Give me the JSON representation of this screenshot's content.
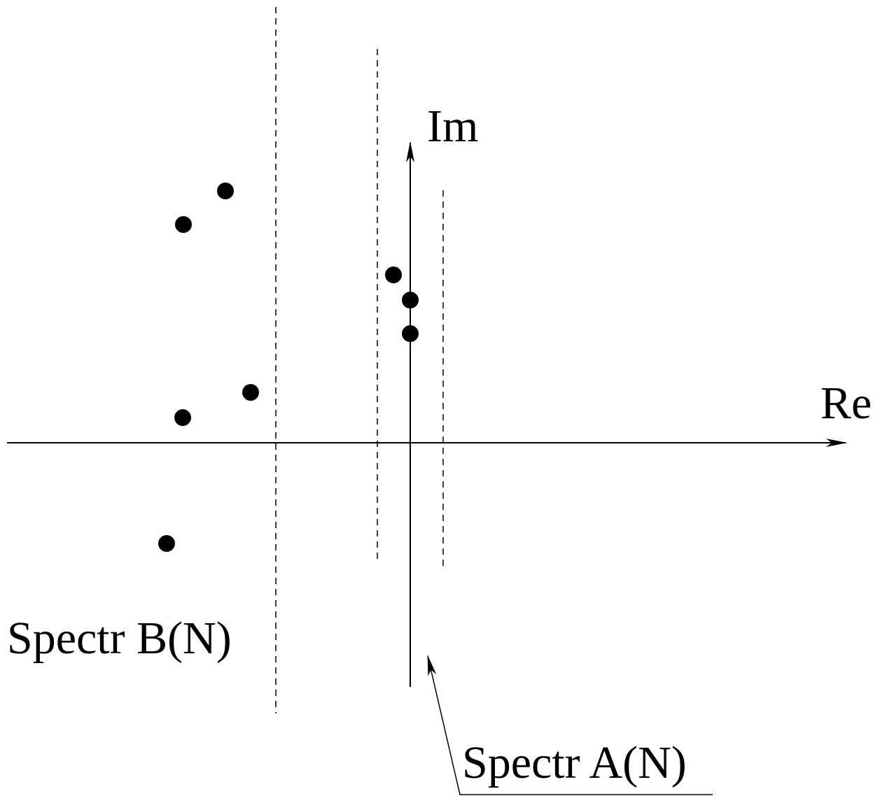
{
  "axes": {
    "re_label": "Re",
    "im_label": "Im"
  },
  "labels": {
    "spectr_b": "Spectr B(N)",
    "spectr_a": "Spectr A(N)"
  },
  "style": {
    "ink_color": "#000000",
    "background_color": "#ffffff"
  }
}
